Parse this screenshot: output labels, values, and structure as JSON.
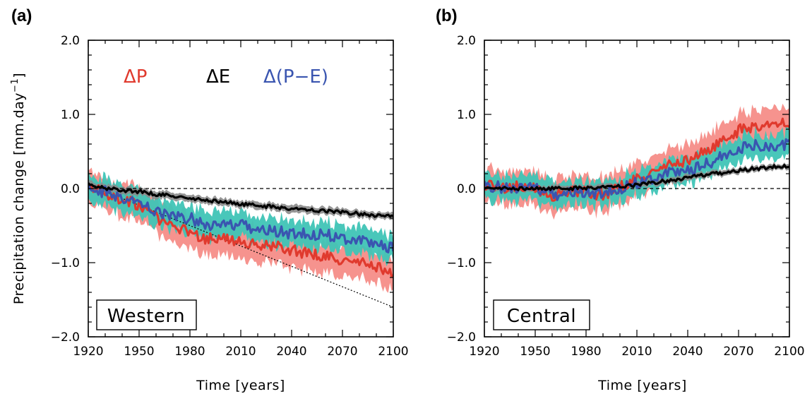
{
  "chart_data": [
    {
      "panel_label": "(a)",
      "type": "line",
      "region_label": "Western",
      "xlabel": "Time [years]",
      "ylabel": "Precipitation change [mm.day",
      "ylabel_exponent": "−1",
      "ylabel_close": "]",
      "xlim": [
        1920,
        2100
      ],
      "ylim": [
        -2.0,
        2.0
      ],
      "x_tick_labels": [
        "1920",
        "1950",
        "1980",
        "2010",
        "2040",
        "2070",
        "2100"
      ],
      "y_tick_labels": [
        "2.0",
        "1.0",
        "0.0",
        "−1.0",
        "−2.0"
      ],
      "grid": false,
      "legend_position": "top",
      "legend": [
        {
          "label": "ΔP",
          "color": "#e03a2e"
        },
        {
          "label": "ΔE",
          "color": "#000000"
        },
        {
          "label": "Δ(P−E)",
          "color": "#3a55b0"
        }
      ],
      "zero_line": {
        "y": 0.0,
        "style": "dashed"
      },
      "trend_line": {
        "x": [
          1920,
          2100
        ],
        "y": [
          0.05,
          -1.6
        ],
        "style": "dotted"
      },
      "series": [
        {
          "key": "P",
          "color": "#e03a2e",
          "band_color": "#f58d88",
          "x": [
            1920,
            1930,
            1940,
            1950,
            1960,
            1970,
            1980,
            1990,
            2000,
            2010,
            2020,
            2030,
            2040,
            2050,
            2060,
            2070,
            2080,
            2090,
            2100
          ],
          "values": [
            0.05,
            -0.05,
            -0.15,
            -0.22,
            -0.38,
            -0.52,
            -0.58,
            -0.68,
            -0.68,
            -0.72,
            -0.78,
            -0.78,
            -0.82,
            -0.88,
            -0.92,
            -0.98,
            -1.0,
            -1.05,
            -1.15
          ],
          "band_halfwidth": 0.22
        },
        {
          "key": "E",
          "color": "#000000",
          "band_color": "#8a8a8a",
          "x": [
            1920,
            1930,
            1940,
            1950,
            1960,
            1970,
            1980,
            1990,
            2000,
            2010,
            2020,
            2030,
            2040,
            2050,
            2060,
            2070,
            2080,
            2090,
            2100
          ],
          "values": [
            0.05,
            0.0,
            -0.02,
            -0.04,
            -0.08,
            -0.1,
            -0.14,
            -0.16,
            -0.18,
            -0.21,
            -0.23,
            -0.25,
            -0.27,
            -0.29,
            -0.3,
            -0.32,
            -0.34,
            -0.36,
            -0.38
          ],
          "band_halfwidth": 0.05
        },
        {
          "key": "PE",
          "color": "#3a55b0",
          "band_color": "#3fc4b6",
          "x": [
            1920,
            1930,
            1940,
            1950,
            1960,
            1970,
            1980,
            1990,
            2000,
            2010,
            2020,
            2030,
            2040,
            2050,
            2060,
            2070,
            2080,
            2090,
            2100
          ],
          "values": [
            0.0,
            -0.05,
            -0.12,
            -0.2,
            -0.3,
            -0.38,
            -0.4,
            -0.48,
            -0.5,
            -0.5,
            -0.55,
            -0.58,
            -0.6,
            -0.62,
            -0.62,
            -0.66,
            -0.7,
            -0.74,
            -0.8
          ],
          "band_halfwidth": 0.18
        }
      ]
    },
    {
      "panel_label": "(b)",
      "type": "line",
      "region_label": "Central",
      "xlabel": "Time [years]",
      "xlim": [
        1920,
        2100
      ],
      "ylim": [
        -2.0,
        2.0
      ],
      "x_tick_labels": [
        "1920",
        "1950",
        "1980",
        "2010",
        "2040",
        "2070",
        "2100"
      ],
      "y_tick_labels": [
        "2.0",
        "1.0",
        "0.0",
        "−1.0",
        "−2.0"
      ],
      "grid": false,
      "zero_line": {
        "y": 0.0,
        "style": "dashed"
      },
      "series": [
        {
          "key": "P",
          "color": "#e03a2e",
          "band_color": "#f58d88",
          "x": [
            1920,
            1930,
            1940,
            1950,
            1960,
            1970,
            1980,
            1990,
            2000,
            2010,
            2020,
            2030,
            2040,
            2050,
            2060,
            2070,
            2080,
            2090,
            2100
          ],
          "values": [
            0.05,
            0.02,
            0.02,
            0.0,
            -0.12,
            -0.05,
            -0.05,
            -0.08,
            0.02,
            0.12,
            0.22,
            0.32,
            0.38,
            0.5,
            0.62,
            0.78,
            0.85,
            0.85,
            0.9
          ],
          "band_halfwidth": 0.22
        },
        {
          "key": "E",
          "color": "#000000",
          "band_color": "#8a8a8a",
          "x": [
            1920,
            1930,
            1940,
            1950,
            1960,
            1970,
            1980,
            1990,
            2000,
            2010,
            2020,
            2030,
            2040,
            2050,
            2060,
            2070,
            2080,
            2090,
            2100
          ],
          "values": [
            0.0,
            0.0,
            0.0,
            0.0,
            0.0,
            0.0,
            0.01,
            0.02,
            0.03,
            0.05,
            0.08,
            0.11,
            0.15,
            0.18,
            0.21,
            0.24,
            0.27,
            0.29,
            0.31
          ],
          "band_halfwidth": 0.04
        },
        {
          "key": "PE",
          "color": "#3a55b0",
          "band_color": "#3fc4b6",
          "x": [
            1920,
            1930,
            1940,
            1950,
            1960,
            1970,
            1980,
            1990,
            2000,
            2010,
            2020,
            2030,
            2040,
            2050,
            2060,
            2070,
            2080,
            2090,
            2100
          ],
          "values": [
            0.03,
            0.02,
            0.02,
            0.0,
            -0.1,
            -0.05,
            -0.05,
            -0.06,
            0.0,
            0.08,
            0.15,
            0.22,
            0.25,
            0.32,
            0.42,
            0.55,
            0.58,
            0.58,
            0.6
          ],
          "band_halfwidth": 0.17
        }
      ]
    }
  ]
}
